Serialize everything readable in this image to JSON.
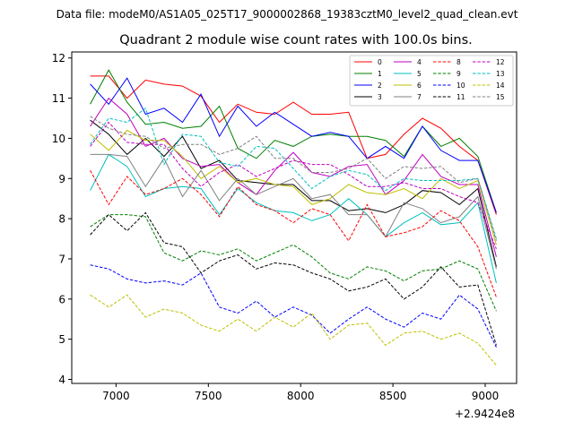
{
  "suptitle": "Data file: modeM0/AS1A05_025T17_9000002868_19383cztM0_level2_quad_clean.evt",
  "chart_data": {
    "type": "line",
    "title": "Quadrant 2 module wise count rates with 100.0s bins.",
    "xlabel": "",
    "ylabel": "",
    "x_offset_label": "+2.9424e8",
    "xlim": [
      6760,
      9170
    ],
    "ylim": [
      3.9,
      12.15
    ],
    "xticks": [
      7000,
      7500,
      8000,
      8500,
      9000
    ],
    "yticks": [
      4,
      5,
      6,
      7,
      8,
      9,
      10,
      11,
      12
    ],
    "grid": false,
    "legend_position": "top-right",
    "x": [
      6860,
      6960,
      7060,
      7160,
      7260,
      7360,
      7460,
      7560,
      7660,
      7760,
      7860,
      7960,
      8060,
      8160,
      8260,
      8360,
      8460,
      8560,
      8660,
      8760,
      8860,
      8960,
      9060
    ],
    "series": [
      {
        "name": "0",
        "color": "#ff0000",
        "dash": "solid",
        "values": [
          11.55,
          11.55,
          11.0,
          11.45,
          11.35,
          11.3,
          11.05,
          10.4,
          10.85,
          10.65,
          10.6,
          10.9,
          10.6,
          10.6,
          10.65,
          9.5,
          9.6,
          10.1,
          10.5,
          10.25,
          9.8,
          9.45,
          8.1
        ]
      },
      {
        "name": "1",
        "color": "#008000",
        "dash": "solid",
        "values": [
          10.85,
          11.7,
          10.9,
          10.35,
          10.4,
          10.25,
          10.3,
          10.8,
          9.75,
          9.5,
          9.95,
          9.8,
          10.05,
          10.1,
          10.05,
          10.05,
          9.95,
          9.55,
          10.3,
          9.8,
          10.0,
          9.55,
          8.15
        ]
      },
      {
        "name": "2",
        "color": "#0000ff",
        "dash": "solid",
        "values": [
          11.35,
          10.85,
          11.5,
          10.6,
          10.75,
          10.4,
          11.1,
          10.05,
          10.8,
          10.3,
          10.65,
          10.35,
          10.05,
          10.15,
          10.05,
          9.5,
          9.8,
          9.5,
          10.3,
          9.7,
          9.45,
          9.45,
          8.15
        ]
      },
      {
        "name": "3",
        "color": "#000000",
        "dash": "solid",
        "values": [
          10.45,
          10.1,
          9.6,
          10.0,
          9.55,
          10.05,
          9.25,
          9.45,
          8.95,
          8.9,
          8.85,
          8.85,
          8.45,
          8.45,
          8.2,
          8.25,
          8.15,
          8.35,
          8.7,
          8.65,
          8.35,
          8.75,
          6.8
        ]
      },
      {
        "name": "4",
        "color": "#bf00bf",
        "dash": "solid",
        "values": [
          10.3,
          11.0,
          10.6,
          9.8,
          10.0,
          9.5,
          9.3,
          9.35,
          8.9,
          8.6,
          9.2,
          9.65,
          9.15,
          9.05,
          9.3,
          9.35,
          8.6,
          8.95,
          9.6,
          9.05,
          8.85,
          8.85,
          7.05
        ]
      },
      {
        "name": "5",
        "color": "#00bfbf",
        "dash": "solid",
        "values": [
          8.7,
          9.6,
          9.3,
          8.55,
          8.75,
          8.8,
          8.75,
          8.1,
          8.75,
          8.4,
          8.2,
          8.15,
          7.95,
          8.1,
          8.5,
          8.1,
          7.55,
          7.9,
          8.15,
          7.85,
          7.9,
          8.4,
          6.4
        ]
      },
      {
        "name": "6",
        "color": "#bfbf00",
        "dash": "solid",
        "values": [
          10.1,
          9.7,
          10.2,
          9.95,
          9.95,
          9.55,
          9.0,
          9.3,
          8.9,
          9.0,
          8.85,
          8.8,
          8.35,
          8.5,
          8.85,
          8.65,
          8.6,
          8.75,
          8.5,
          9.0,
          8.75,
          8.95,
          7.35
        ]
      },
      {
        "name": "7",
        "color": "#808080",
        "dash": "solid",
        "values": [
          9.6,
          9.6,
          9.55,
          8.8,
          9.5,
          8.55,
          9.2,
          8.45,
          9.0,
          8.6,
          8.8,
          9.0,
          8.5,
          8.6,
          8.1,
          8.1,
          7.55,
          8.4,
          8.25,
          7.9,
          8.05,
          8.55,
          6.75
        ]
      },
      {
        "name": "8",
        "color": "#ff0000",
        "dash": "dashed",
        "values": [
          9.2,
          8.35,
          9.05,
          8.6,
          8.75,
          9.0,
          8.6,
          8.05,
          8.8,
          8.35,
          8.2,
          7.9,
          8.25,
          8.1,
          7.45,
          8.35,
          7.55,
          7.65,
          7.8,
          8.2,
          7.95,
          7.3,
          6.05
        ]
      },
      {
        "name": "9",
        "color": "#008000",
        "dash": "dashed",
        "values": [
          7.8,
          8.1,
          8.1,
          8.05,
          7.15,
          6.95,
          7.2,
          7.1,
          7.25,
          6.95,
          7.15,
          7.35,
          7.05,
          6.65,
          6.5,
          6.8,
          6.7,
          6.45,
          6.7,
          6.75,
          6.95,
          6.75,
          5.7
        ]
      },
      {
        "name": "10",
        "color": "#0000ff",
        "dash": "dashed",
        "values": [
          6.85,
          6.75,
          6.5,
          6.4,
          6.45,
          6.35,
          6.65,
          5.8,
          5.65,
          5.95,
          5.55,
          5.8,
          5.6,
          5.15,
          5.5,
          5.8,
          5.5,
          5.3,
          5.65,
          5.5,
          6.1,
          5.75,
          4.8
        ]
      },
      {
        "name": "11",
        "color": "#000000",
        "dash": "dashed",
        "values": [
          7.6,
          8.1,
          7.7,
          8.15,
          7.4,
          7.3,
          6.65,
          6.95,
          7.1,
          6.75,
          6.9,
          6.85,
          6.65,
          6.5,
          6.2,
          6.3,
          6.5,
          6.0,
          6.3,
          6.8,
          6.3,
          6.35,
          4.85
        ]
      },
      {
        "name": "12",
        "color": "#bf00bf",
        "dash": "dashed",
        "values": [
          9.8,
          10.4,
          9.9,
          9.85,
          9.85,
          9.25,
          8.8,
          9.15,
          9.35,
          9.05,
          9.25,
          9.45,
          9.35,
          9.35,
          9.1,
          8.8,
          8.8,
          8.9,
          8.75,
          8.75,
          8.55,
          8.4,
          7.25
        ]
      },
      {
        "name": "13",
        "color": "#00bfbf",
        "dash": "dashed",
        "values": [
          9.85,
          10.5,
          10.4,
          10.75,
          9.35,
          10.1,
          10.05,
          9.4,
          9.3,
          9.8,
          9.75,
          9.25,
          8.75,
          9.05,
          9.2,
          9.1,
          8.7,
          9.0,
          8.95,
          8.95,
          8.95,
          9.0,
          7.5
        ]
      },
      {
        "name": "14",
        "color": "#bfbf00",
        "dash": "dashed",
        "values": [
          6.1,
          5.8,
          6.1,
          5.55,
          5.75,
          5.65,
          5.35,
          5.2,
          5.5,
          5.2,
          5.55,
          5.3,
          5.65,
          5.0,
          5.35,
          5.4,
          4.85,
          5.15,
          5.2,
          5.0,
          5.15,
          4.9,
          4.35
        ]
      },
      {
        "name": "15",
        "color": "#808080",
        "dash": "dashed",
        "values": [
          10.55,
          10.25,
          10.1,
          10.05,
          9.75,
          9.85,
          9.85,
          9.6,
          9.75,
          10.05,
          9.5,
          9.5,
          9.15,
          9.15,
          9.25,
          9.5,
          9.0,
          9.3,
          9.25,
          9.3,
          8.9,
          9.0,
          7.45
        ]
      }
    ]
  }
}
